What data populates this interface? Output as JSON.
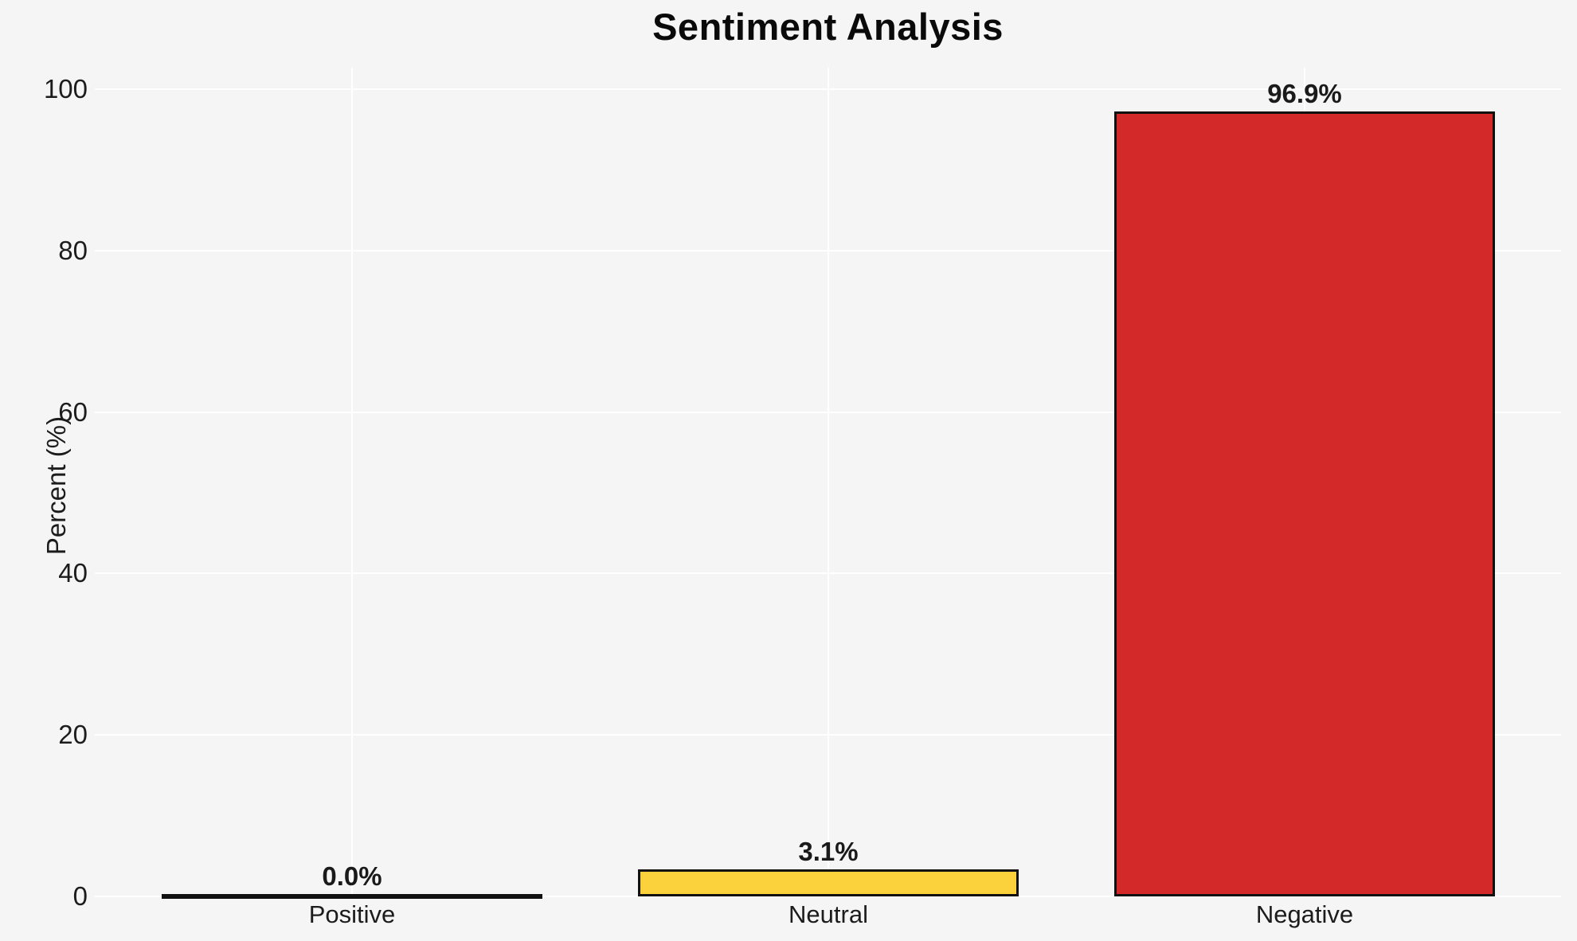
{
  "chart_data": {
    "type": "bar",
    "title": "Sentiment Analysis",
    "xlabel": "",
    "ylabel": "Percent (%)",
    "categories": [
      "Positive",
      "Neutral",
      "Negative"
    ],
    "values": [
      0.0,
      3.1,
      96.9
    ],
    "value_labels": [
      "0.0%",
      "3.1%",
      "96.9%"
    ],
    "yticks": [
      0,
      20,
      40,
      60,
      80,
      100
    ],
    "ytick_labels": [
      "0",
      "20",
      "40",
      "60",
      "80",
      "100"
    ],
    "ylim": [
      0,
      105
    ],
    "grid": true,
    "legend": false,
    "bar_fill_colors": [
      null,
      "#fbd23c",
      "#d32928"
    ],
    "bar_edge_color": "#111111",
    "background_color": "#f5f5f6",
    "gridline_color": "#ffffff"
  }
}
